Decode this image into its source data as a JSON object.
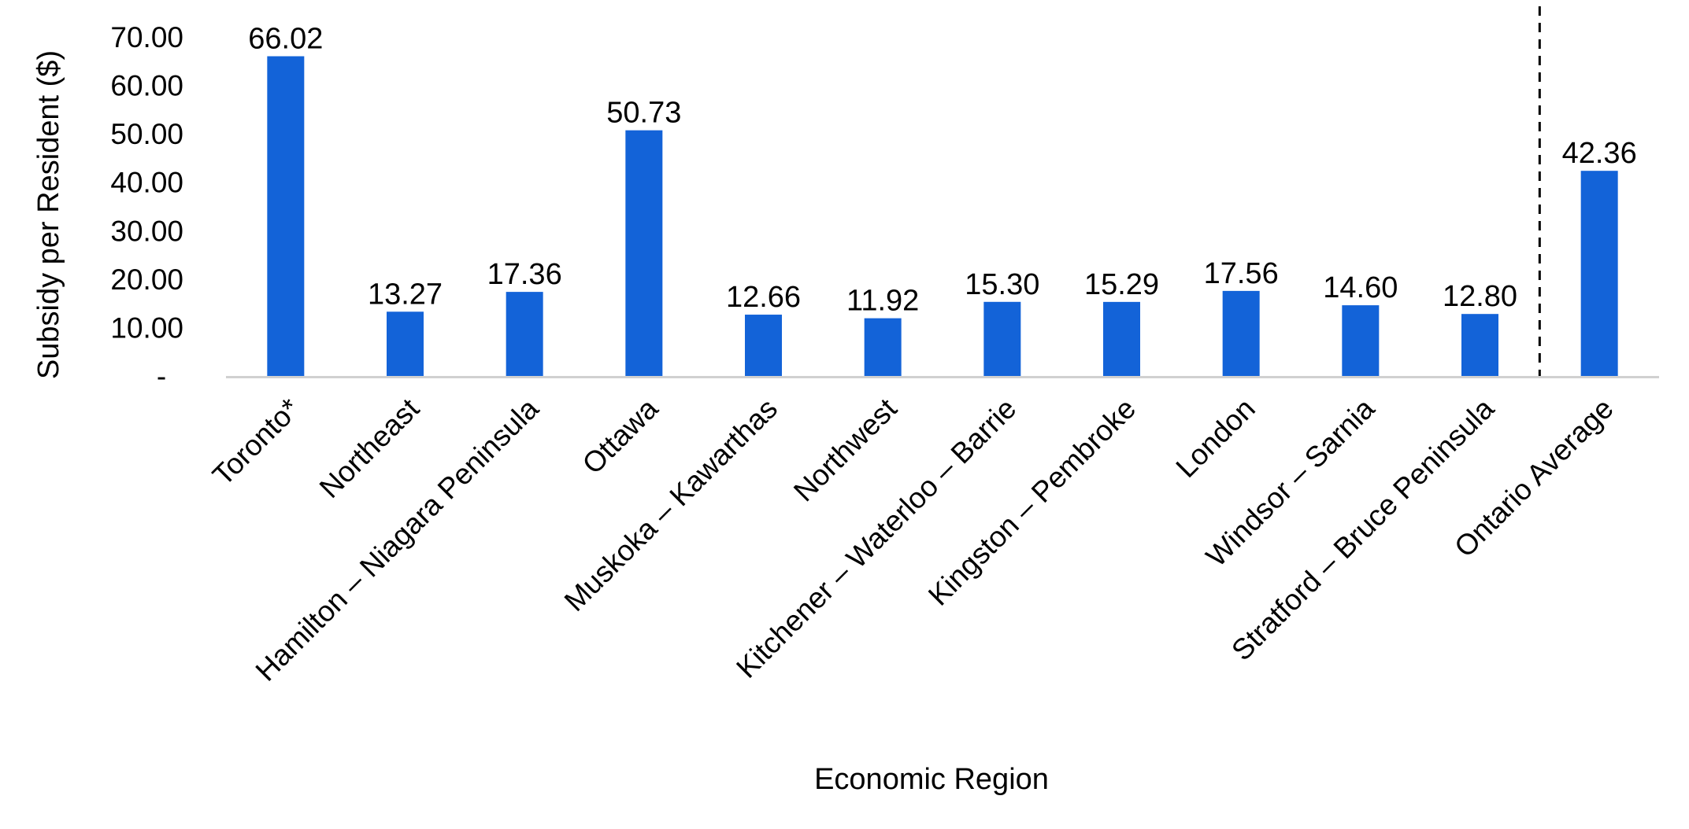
{
  "chart_data": {
    "type": "bar",
    "xlabel": "Economic Region",
    "ylabel": "Subsidy per Resident ($)",
    "ylim": [
      0,
      70
    ],
    "yticks": [
      {
        "value": 0,
        "label": "-"
      },
      {
        "value": 10,
        "label": "10.00"
      },
      {
        "value": 20,
        "label": "20.00"
      },
      {
        "value": 30,
        "label": "30.00"
      },
      {
        "value": 40,
        "label": "40.00"
      },
      {
        "value": 50,
        "label": "50.00"
      },
      {
        "value": 60,
        "label": "60.00"
      },
      {
        "value": 70,
        "label": "70.00"
      }
    ],
    "categories": [
      "Toronto*",
      "Northeast",
      "Hamilton – Niagara Peninsula",
      "Ottawa",
      "Muskoka – Kawarthas",
      "Northwest",
      "Kitchener – Waterloo – Barrie",
      "Kingston – Pembroke",
      "London",
      "Windsor –  Sarnia",
      "Stratford – Bruce Peninsula",
      "Ontario Average"
    ],
    "values": [
      66.02,
      13.27,
      17.36,
      50.73,
      12.66,
      11.92,
      15.3,
      15.29,
      17.56,
      14.6,
      12.8,
      42.36
    ],
    "value_labels": [
      "66.02",
      "13.27",
      "17.36",
      "50.73",
      "12.66",
      "11.92",
      "15.30",
      "15.29",
      "17.56",
      "14.60",
      "12.80",
      "42.36"
    ],
    "bar_color": "#1363D8",
    "axis_color": "#D0D0D0",
    "separator": {
      "style": "dashed",
      "between_categories": [
        "Stratford – Bruce Peninsula",
        "Ontario Average"
      ]
    },
    "grid": false,
    "legend": "none"
  }
}
